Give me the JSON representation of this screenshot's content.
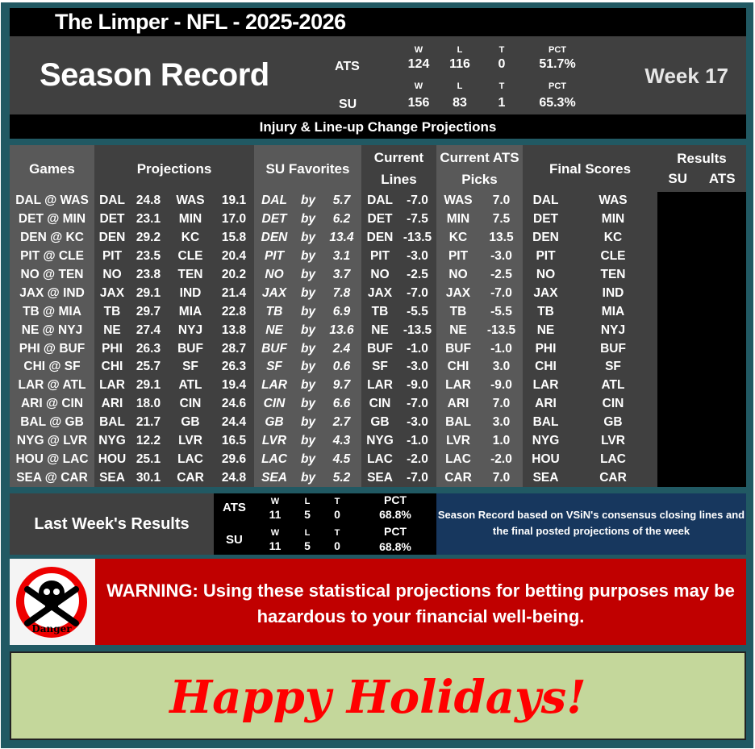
{
  "title": "The Limper - NFL - 2025-2026",
  "season": {
    "label": "Season Record",
    "week": "Week 17",
    "ats": {
      "label": "ATS",
      "w_label": "W",
      "l_label": "L",
      "t_label": "T",
      "pct_label": "PCT",
      "w": "124",
      "l": "116",
      "t": "0",
      "pct": "51.7%"
    },
    "su": {
      "label": "SU",
      "w_label": "W",
      "l_label": "L",
      "t_label": "T",
      "pct_label": "PCT",
      "w": "156",
      "l": "83",
      "t": "1",
      "pct": "65.3%"
    }
  },
  "subtitle": "Injury & Line-up Change Projections",
  "headers": {
    "games": "Games",
    "projections": "Projections",
    "su_favorites": "SU Favorites",
    "current_lines_1": "Current",
    "current_lines_2": "Lines",
    "ats_picks_1": "Current ATS",
    "ats_picks_2": "Picks",
    "final_scores": "Final Scores",
    "results": "Results",
    "results_su": "SU",
    "results_ats": "ATS"
  },
  "rows": [
    [
      "DAL @ WAS",
      "DAL",
      "24.8",
      "WAS",
      "19.1",
      "DAL",
      "by",
      "5.7",
      "DAL",
      "-7.0",
      "WAS",
      "7.0",
      "DAL",
      "WAS"
    ],
    [
      "DET @ MIN",
      "DET",
      "23.1",
      "MIN",
      "17.0",
      "DET",
      "by",
      "6.2",
      "DET",
      "-7.5",
      "MIN",
      "7.5",
      "DET",
      "MIN"
    ],
    [
      "DEN @ KC",
      "DEN",
      "29.2",
      "KC",
      "15.8",
      "DEN",
      "by",
      "13.4",
      "DEN",
      "-13.5",
      "KC",
      "13.5",
      "DEN",
      "KC"
    ],
    [
      "PIT @ CLE",
      "PIT",
      "23.5",
      "CLE",
      "20.4",
      "PIT",
      "by",
      "3.1",
      "PIT",
      "-3.0",
      "PIT",
      "-3.0",
      "PIT",
      "CLE"
    ],
    [
      "NO @ TEN",
      "NO",
      "23.8",
      "TEN",
      "20.2",
      "NO",
      "by",
      "3.7",
      "NO",
      "-2.5",
      "NO",
      "-2.5",
      "NO",
      "TEN"
    ],
    [
      "JAX @ IND",
      "JAX",
      "29.1",
      "IND",
      "21.4",
      "JAX",
      "by",
      "7.8",
      "JAX",
      "-7.0",
      "JAX",
      "-7.0",
      "JAX",
      "IND"
    ],
    [
      "TB @ MIA",
      "TB",
      "29.7",
      "MIA",
      "22.8",
      "TB",
      "by",
      "6.9",
      "TB",
      "-5.5",
      "TB",
      "-5.5",
      "TB",
      "MIA"
    ],
    [
      "NE @ NYJ",
      "NE",
      "27.4",
      "NYJ",
      "13.8",
      "NE",
      "by",
      "13.6",
      "NE",
      "-13.5",
      "NE",
      "-13.5",
      "NE",
      "NYJ"
    ],
    [
      "PHI @ BUF",
      "PHI",
      "26.3",
      "BUF",
      "28.7",
      "BUF",
      "by",
      "2.4",
      "BUF",
      "-1.0",
      "BUF",
      "-1.0",
      "PHI",
      "BUF"
    ],
    [
      "CHI @ SF",
      "CHI",
      "25.7",
      "SF",
      "26.3",
      "SF",
      "by",
      "0.6",
      "SF",
      "-3.0",
      "CHI",
      "3.0",
      "CHI",
      "SF"
    ],
    [
      "LAR @ ATL",
      "LAR",
      "29.1",
      "ATL",
      "19.4",
      "LAR",
      "by",
      "9.7",
      "LAR",
      "-9.0",
      "LAR",
      "-9.0",
      "LAR",
      "ATL"
    ],
    [
      "ARI @ CIN",
      "ARI",
      "18.0",
      "CIN",
      "24.6",
      "CIN",
      "by",
      "6.6",
      "CIN",
      "-7.0",
      "ARI",
      "7.0",
      "ARI",
      "CIN"
    ],
    [
      "BAL @ GB",
      "BAL",
      "21.7",
      "GB",
      "24.4",
      "GB",
      "by",
      "2.7",
      "GB",
      "-3.0",
      "BAL",
      "3.0",
      "BAL",
      "GB"
    ],
    [
      "NYG @ LVR",
      "NYG",
      "12.2",
      "LVR",
      "16.5",
      "LVR",
      "by",
      "4.3",
      "NYG",
      "-1.0",
      "LVR",
      "1.0",
      "NYG",
      "LVR"
    ],
    [
      "HOU @ LAC",
      "HOU",
      "25.1",
      "LAC",
      "29.6",
      "LAC",
      "by",
      "4.5",
      "LAC",
      "-2.0",
      "LAC",
      "-2.0",
      "HOU",
      "LAC"
    ],
    [
      "SEA @ CAR",
      "SEA",
      "30.1",
      "CAR",
      "24.8",
      "SEA",
      "by",
      "5.2",
      "SEA",
      "-7.0",
      "CAR",
      "7.0",
      "SEA",
      "CAR"
    ]
  ],
  "last_week": {
    "label": "Last Week's Results",
    "ats": {
      "label": "ATS",
      "w_label": "W",
      "l_label": "L",
      "t_label": "T",
      "pct_label": "PCT",
      "w": "11",
      "l": "5",
      "t": "0",
      "pct": "68.8%"
    },
    "su": {
      "label": "SU",
      "w_label": "W",
      "l_label": "L",
      "t_label": "T",
      "pct_label": "PCT",
      "w": "11",
      "l": "5",
      "t": "0",
      "pct": "68.8%"
    }
  },
  "note": "Season Record based on VSiN's consensus closing lines and the final posted projections of the week",
  "warning": {
    "icon": "skull-crossbones-danger-icon",
    "icon_text": "Danger",
    "text": "WARNING: Using these statistical projections for betting purposes may be hazardous to your financial well-being."
  },
  "greeting": "Happy Holidays!",
  "colors": {
    "frame": "#215963",
    "dark_grey": "#404040",
    "mid_grey": "#595959",
    "navy": "#17375e",
    "warning_red": "#c00000",
    "holiday_green": "#c4d79b",
    "holiday_text": "#ff0000"
  }
}
